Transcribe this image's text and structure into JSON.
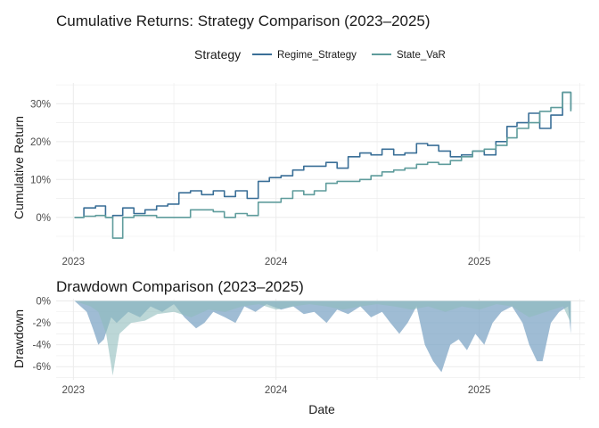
{
  "figure": {
    "title": "Cumulative Returns: Strategy Comparison (2023–2025)",
    "title2": "Drawdown Comparison (2023–2025)",
    "legend_title": "Strategy",
    "xlabel": "Date",
    "ylabel_top": "Cumulative Return",
    "ylabel_bottom": "Drawdown"
  },
  "colors": {
    "Regime_Strategy": "#3a6f97",
    "State_VaR": "#5f9c9c",
    "drawdown_Regime_Strategy": "#7fa6c6",
    "drawdown_State_VaR": "#8fbcbc",
    "grid": "#ebebeb",
    "text": "#1a1a1a",
    "tick_text": "#4d4d4d"
  },
  "chart_data": [
    {
      "type": "line",
      "title": "Cumulative Returns: Strategy Comparison (2023–2025)",
      "xlabel": "",
      "ylabel": "Cumulative Return",
      "x_ticks": [
        "2023",
        "2024",
        "2025"
      ],
      "y_ticks": [
        "0%",
        "10%",
        "20%",
        "30%"
      ],
      "xlim": [
        "2022-12-01",
        "2025-07-10"
      ],
      "ylim": [
        -0.09,
        0.355
      ],
      "legend": {
        "title": "Strategy",
        "placement": "top"
      },
      "grid": true,
      "series": [
        {
          "name": "Regime_Strategy",
          "x": [
            "2023-01-03",
            "2023-01-20",
            "2023-02-10",
            "2023-02-28",
            "2023-03-13",
            "2023-03-31",
            "2023-04-20",
            "2023-05-10",
            "2023-05-31",
            "2023-06-20",
            "2023-07-10",
            "2023-07-31",
            "2023-08-20",
            "2023-09-10",
            "2023-09-30",
            "2023-10-20",
            "2023-11-10",
            "2023-11-30",
            "2023-12-20",
            "2024-01-10",
            "2024-01-31",
            "2024-02-20",
            "2024-03-10",
            "2024-03-31",
            "2024-04-20",
            "2024-05-10",
            "2024-05-31",
            "2024-06-20",
            "2024-07-10",
            "2024-07-31",
            "2024-08-20",
            "2024-09-10",
            "2024-09-30",
            "2024-10-20",
            "2024-11-10",
            "2024-11-30",
            "2024-12-20",
            "2025-01-10",
            "2025-01-31",
            "2025-02-20",
            "2025-03-10",
            "2025-03-31",
            "2025-04-20",
            "2025-05-10",
            "2025-05-31",
            "2025-06-15"
          ],
          "values": [
            0.0,
            0.025,
            0.03,
            0.0,
            0.005,
            0.025,
            0.01,
            0.02,
            0.03,
            0.035,
            0.065,
            0.07,
            0.06,
            0.07,
            0.055,
            0.07,
            0.05,
            0.095,
            0.105,
            0.11,
            0.125,
            0.135,
            0.135,
            0.145,
            0.13,
            0.16,
            0.17,
            0.165,
            0.18,
            0.165,
            0.17,
            0.195,
            0.19,
            0.175,
            0.16,
            0.165,
            0.175,
            0.165,
            0.2,
            0.24,
            0.25,
            0.275,
            0.235,
            0.27,
            0.33,
            0.285
          ]
        },
        {
          "name": "State_VaR",
          "x": [
            "2023-01-03",
            "2023-01-20",
            "2023-02-10",
            "2023-02-28",
            "2023-03-13",
            "2023-03-31",
            "2023-04-20",
            "2023-05-10",
            "2023-05-31",
            "2023-06-20",
            "2023-07-10",
            "2023-07-31",
            "2023-08-20",
            "2023-09-10",
            "2023-09-30",
            "2023-10-20",
            "2023-11-10",
            "2023-11-30",
            "2023-12-20",
            "2024-01-10",
            "2024-01-31",
            "2024-02-20",
            "2024-03-10",
            "2024-03-31",
            "2024-04-20",
            "2024-05-10",
            "2024-05-31",
            "2024-06-20",
            "2024-07-10",
            "2024-07-31",
            "2024-08-20",
            "2024-09-10",
            "2024-09-30",
            "2024-10-20",
            "2024-11-10",
            "2024-11-30",
            "2024-12-20",
            "2025-01-10",
            "2025-01-31",
            "2025-02-20",
            "2025-03-10",
            "2025-03-31",
            "2025-04-20",
            "2025-05-10",
            "2025-05-31",
            "2025-06-15"
          ],
          "values": [
            0.0,
            0.003,
            0.005,
            0.0,
            -0.055,
            0.0,
            0.005,
            0.005,
            0.0,
            0.0,
            0.0,
            0.02,
            0.02,
            0.015,
            0.0,
            0.01,
            0.005,
            0.04,
            0.04,
            0.05,
            0.07,
            0.06,
            0.07,
            0.09,
            0.095,
            0.095,
            0.1,
            0.11,
            0.12,
            0.125,
            0.13,
            0.14,
            0.145,
            0.14,
            0.15,
            0.16,
            0.175,
            0.18,
            0.19,
            0.21,
            0.235,
            0.25,
            0.28,
            0.29,
            0.33,
            0.28
          ]
        }
      ]
    },
    {
      "type": "area",
      "title": "Drawdown Comparison (2023–2025)",
      "xlabel": "Date",
      "ylabel": "Drawdown",
      "x_ticks": [
        "2023",
        "2024",
        "2025"
      ],
      "y_ticks": [
        "0%",
        "-2%",
        "-4%",
        "-6%"
      ],
      "xlim": [
        "2022-12-01",
        "2025-07-10"
      ],
      "ylim": [
        -0.072,
        0.002
      ],
      "grid": true,
      "series": [
        {
          "name": "Regime_Strategy",
          "x": [
            "2023-01-03",
            "2023-01-25",
            "2023-02-05",
            "2023-02-15",
            "2023-02-25",
            "2023-03-10",
            "2023-03-20",
            "2023-04-10",
            "2023-05-01",
            "2023-05-20",
            "2023-06-10",
            "2023-07-01",
            "2023-07-20",
            "2023-08-10",
            "2023-08-25",
            "2023-09-10",
            "2023-10-01",
            "2023-10-20",
            "2023-11-05",
            "2023-11-25",
            "2023-12-15",
            "2024-01-10",
            "2024-02-01",
            "2024-02-20",
            "2024-03-10",
            "2024-04-01",
            "2024-04-20",
            "2024-05-10",
            "2024-06-01",
            "2024-06-20",
            "2024-07-10",
            "2024-07-25",
            "2024-08-10",
            "2024-08-25",
            "2024-09-10",
            "2024-09-25",
            "2024-10-10",
            "2024-10-25",
            "2024-11-10",
            "2024-11-25",
            "2024-12-10",
            "2024-12-25",
            "2025-01-10",
            "2025-01-25",
            "2025-02-10",
            "2025-03-01",
            "2025-03-20",
            "2025-04-01",
            "2025-04-15",
            "2025-04-25",
            "2025-05-10",
            "2025-05-25",
            "2025-06-10",
            "2025-06-15"
          ],
          "values": [
            0.0,
            -0.01,
            -0.025,
            -0.04,
            -0.035,
            -0.015,
            -0.02,
            -0.01,
            -0.015,
            -0.005,
            -0.01,
            -0.003,
            -0.015,
            -0.025,
            -0.02,
            -0.01,
            -0.015,
            -0.02,
            -0.005,
            -0.01,
            -0.003,
            -0.008,
            -0.005,
            -0.012,
            -0.01,
            -0.02,
            -0.008,
            -0.012,
            -0.005,
            -0.015,
            -0.01,
            -0.02,
            -0.03,
            -0.02,
            -0.005,
            -0.04,
            -0.055,
            -0.065,
            -0.04,
            -0.035,
            -0.045,
            -0.03,
            -0.04,
            -0.02,
            -0.01,
            -0.005,
            -0.02,
            -0.04,
            -0.055,
            -0.055,
            -0.02,
            -0.01,
            -0.005,
            -0.03
          ]
        },
        {
          "name": "State_VaR",
          "x": [
            "2023-01-03",
            "2023-02-01",
            "2023-02-15",
            "2023-03-01",
            "2023-03-13",
            "2023-03-25",
            "2023-04-15",
            "2023-05-10",
            "2023-06-01",
            "2023-07-01",
            "2023-08-01",
            "2023-09-01",
            "2023-10-01",
            "2023-11-01",
            "2023-12-01",
            "2024-01-01",
            "2024-02-01",
            "2024-03-01",
            "2024-04-01",
            "2024-05-01",
            "2024-06-01",
            "2024-07-01",
            "2024-08-01",
            "2024-09-01",
            "2024-10-01",
            "2024-11-01",
            "2024-12-01",
            "2025-01-01",
            "2025-02-01",
            "2025-03-01",
            "2025-04-01",
            "2025-05-01",
            "2025-06-01",
            "2025-06-15"
          ],
          "values": [
            0.0,
            -0.005,
            -0.01,
            -0.03,
            -0.068,
            -0.03,
            -0.02,
            -0.018,
            -0.012,
            -0.01,
            -0.015,
            -0.008,
            -0.01,
            -0.005,
            -0.003,
            -0.008,
            -0.005,
            -0.003,
            -0.005,
            -0.008,
            -0.005,
            -0.003,
            -0.005,
            -0.008,
            -0.005,
            -0.01,
            -0.005,
            -0.008,
            -0.003,
            -0.005,
            -0.015,
            -0.01,
            -0.005,
            -0.02
          ]
        }
      ]
    }
  ]
}
